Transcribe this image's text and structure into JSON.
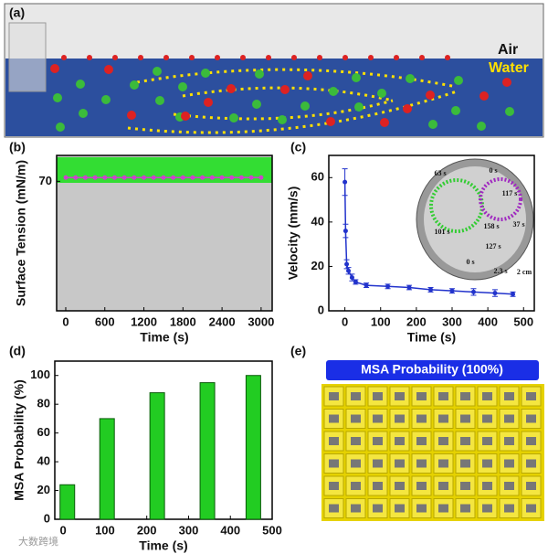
{
  "panel_a": {
    "label": "(a)",
    "air": "Air",
    "water": "Water"
  },
  "chart_data": [
    {
      "type": "line",
      "label": "(b)",
      "x_label": "Time (s)",
      "y_label": "Surface Tension (mN/m)",
      "x": [
        0,
        150,
        300,
        450,
        600,
        750,
        900,
        1050,
        1200,
        1350,
        1500,
        1650,
        1800,
        1950,
        2100,
        2250,
        2400,
        2550,
        2700,
        2850,
        3000
      ],
      "values": [
        72,
        72,
        72,
        72,
        72,
        72,
        72,
        72,
        72,
        72,
        72,
        72,
        72,
        72,
        72,
        72,
        72,
        72,
        72,
        72,
        72
      ],
      "color": "#cc44cc",
      "xlim": [
        -140,
        3170
      ],
      "xticks": [
        0,
        600,
        1200,
        1800,
        2400,
        3000
      ],
      "ylim": [
        0,
        84
      ],
      "yticks": [
        70
      ]
    },
    {
      "type": "errorbar",
      "label": "(c)",
      "x_label": "Time (s)",
      "y_label": "Velocity (mm/s)",
      "x": [
        0,
        2,
        5,
        10,
        20,
        30,
        60,
        120,
        180,
        240,
        300,
        360,
        420,
        470
      ],
      "values": [
        58,
        36,
        21,
        18,
        15,
        13,
        11.5,
        11,
        10.5,
        9.5,
        9,
        8.5,
        8,
        7.5
      ],
      "errors": [
        6,
        3,
        2,
        1.5,
        1.5,
        1,
        1,
        1,
        1,
        1,
        1,
        1.5,
        1.5,
        1
      ],
      "color": "#2233cc",
      "xlim": [
        -45,
        530
      ],
      "xticks": [
        0,
        100,
        200,
        300,
        400,
        500
      ],
      "ylim": [
        0,
        70
      ],
      "yticks": [
        0,
        20,
        40,
        60
      ],
      "inset_labels": [
        "63 s",
        "0 s",
        "117 s",
        "37 s",
        "158 s",
        "101 s",
        "127 s",
        "0 s",
        "2.3 s",
        "2 cm"
      ]
    },
    {
      "type": "bar",
      "label": "(d)",
      "x_label": "Time (s)",
      "y_label": "MSA Probability (%)",
      "x": [
        10,
        105,
        225,
        345,
        455
      ],
      "values": [
        24,
        70,
        88,
        95,
        100
      ],
      "color": "#22cc22",
      "xlim": [
        -20,
        500
      ],
      "xticks": [
        0,
        100,
        200,
        300,
        400,
        500
      ],
      "ylim": [
        0,
        110
      ],
      "yticks": [
        0,
        20,
        40,
        60,
        80,
        100
      ]
    }
  ],
  "panel_e": {
    "label": "(e)",
    "title": "MSA Probability (100%)"
  },
  "watermark": "大数跨境"
}
